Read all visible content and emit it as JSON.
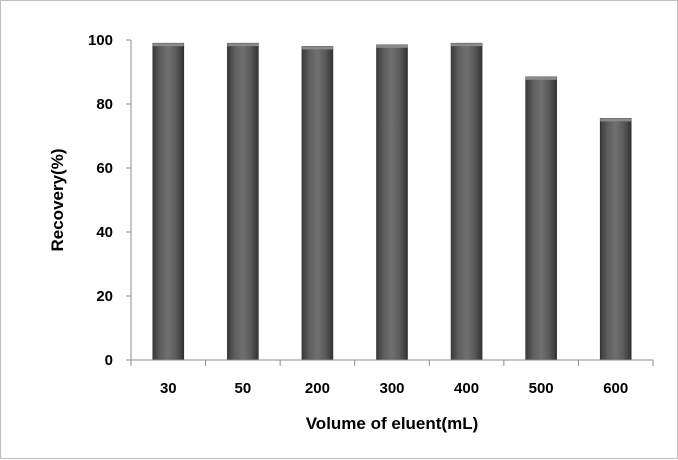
{
  "chart_data": {
    "type": "bar",
    "title": "",
    "xlabel": "Volume of eluent(mL)",
    "ylabel": "Recovery(%)",
    "categories": [
      "30",
      "50",
      "200",
      "300",
      "400",
      "500",
      "600"
    ],
    "values": [
      99,
      99,
      98,
      98.5,
      99,
      88.5,
      75.5
    ],
    "ylim": [
      0,
      100
    ],
    "yticks": [
      0,
      20,
      40,
      60,
      80,
      100
    ],
    "grid": false,
    "legend": "none",
    "bar_color": "#4d4d4d"
  }
}
